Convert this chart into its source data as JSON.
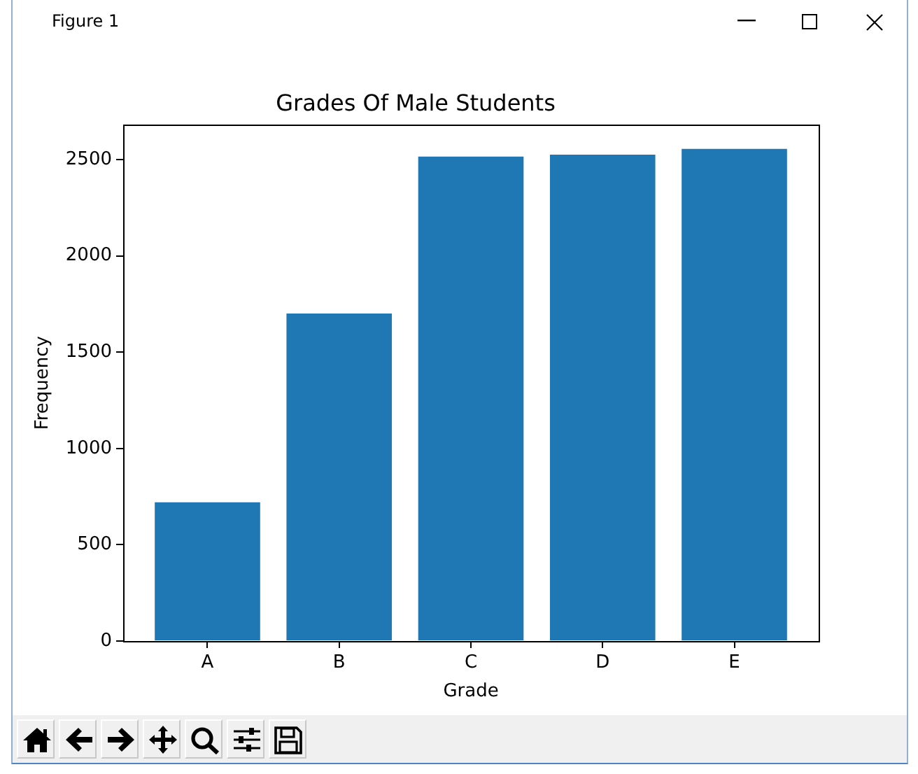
{
  "chart_data": {
    "type": "bar",
    "title": "Grades Of Male Students",
    "xlabel": "Grade",
    "ylabel": "Frequency",
    "categories": [
      "A",
      "B",
      "C",
      "D",
      "E"
    ],
    "values": [
      720,
      1700,
      2515,
      2525,
      2555
    ],
    "color": "#1f77b4",
    "ylim": [
      0,
      2680
    ],
    "yticks": [
      0,
      500,
      1000,
      1500,
      2000,
      2500
    ],
    "annotations": [
      "Figure 1"
    ]
  }
}
